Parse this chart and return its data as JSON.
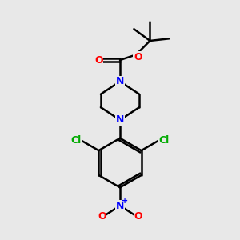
{
  "background_color": "#e8e8e8",
  "atom_colors": {
    "C": "#000000",
    "N": "#0000ff",
    "O": "#ff0000",
    "Cl": "#00aa00"
  },
  "bond_color": "#000000",
  "bond_width": 1.8,
  "fig_size": [
    3.0,
    3.0
  ],
  "dpi": 100,
  "xlim": [
    0,
    10
  ],
  "ylim": [
    0,
    11
  ]
}
